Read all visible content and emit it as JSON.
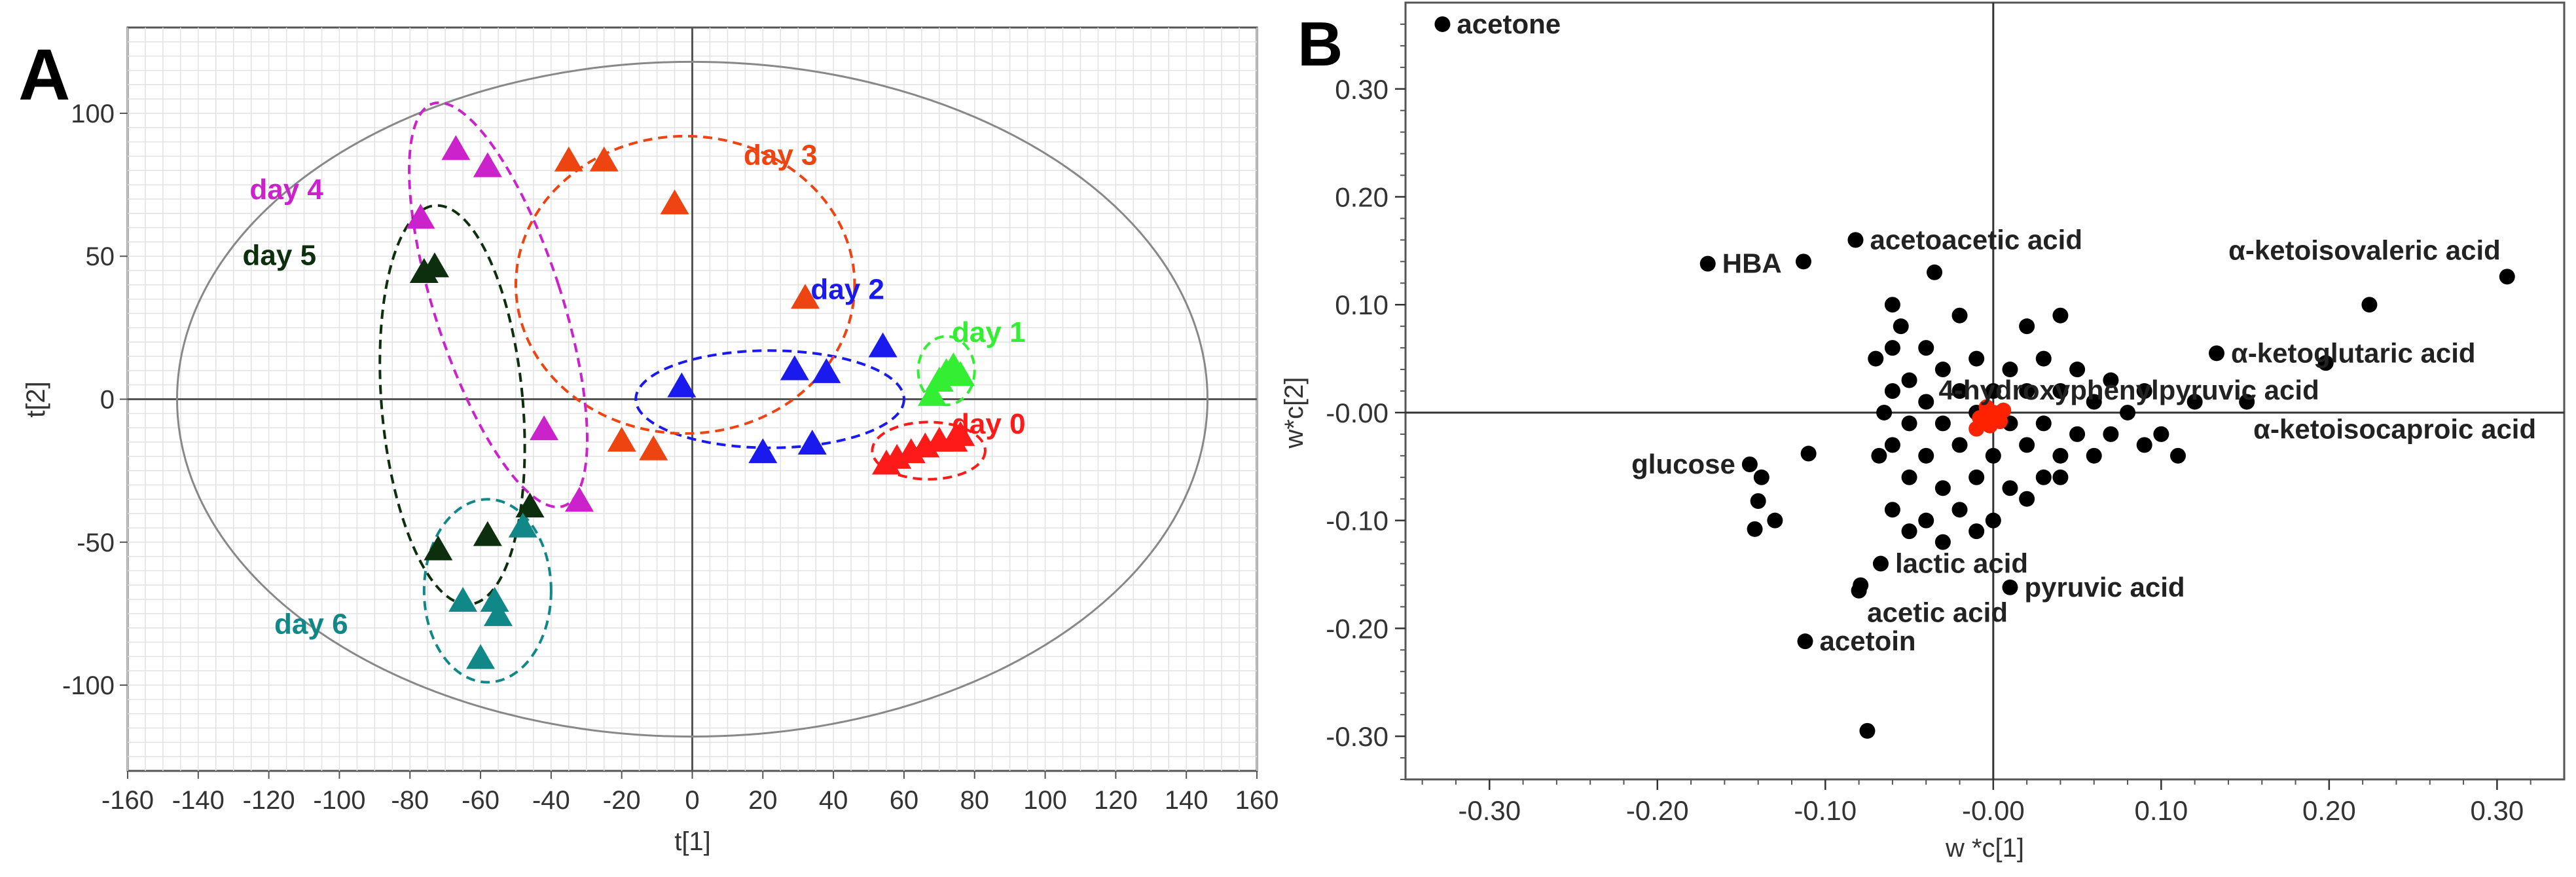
{
  "chart_data": [
    {
      "panel_label": "A",
      "type": "scatter",
      "title": "",
      "xlabel": "t[1]",
      "ylabel": "t[2]",
      "xlim": [
        -160,
        160
      ],
      "ylim": [
        -130,
        130
      ],
      "grid": true,
      "x_ticks": [
        -160,
        -140,
        -120,
        -100,
        -80,
        -60,
        -40,
        -20,
        0,
        20,
        40,
        60,
        80,
        100,
        120,
        140,
        160
      ],
      "y_ticks": [
        -100,
        -50,
        0,
        50,
        100
      ],
      "hotelling_ellipse": {
        "center": [
          0,
          0
        ],
        "radii": [
          146,
          118
        ]
      },
      "series": [
        {
          "name": "day 0",
          "color": "#ff1a1a",
          "label_at": [
            84,
            -12
          ],
          "points": [
            [
              55,
              -22
            ],
            [
              58,
              -20
            ],
            [
              62,
              -18
            ],
            [
              66,
              -16
            ],
            [
              70,
              -14
            ],
            [
              74,
              -14
            ],
            [
              76,
              -12
            ]
          ],
          "cluster": {
            "center": [
              67,
              -18
            ],
            "radii": [
              16,
              10
            ]
          }
        },
        {
          "name": "day 1",
          "color": "#33ee33",
          "label_at": [
            84,
            20
          ],
          "points": [
            [
              68,
              2
            ],
            [
              70,
              7
            ],
            [
              72,
              10
            ],
            [
              74,
              12
            ],
            [
              76,
              9
            ]
          ],
          "cluster": {
            "center": [
              72,
              10
            ],
            "radii": [
              8,
              12
            ]
          }
        },
        {
          "name": "day 2",
          "color": "#1a1aee",
          "label_at": [
            44,
            35
          ],
          "points": [
            [
              -3,
              5
            ],
            [
              20,
              -18
            ],
            [
              29,
              11
            ],
            [
              34,
              -15
            ],
            [
              38,
              10
            ],
            [
              54,
              19
            ]
          ],
          "cluster": {
            "center": [
              22,
              0
            ],
            "radii": [
              38,
              17
            ]
          }
        },
        {
          "name": "day 3",
          "color": "#ee4411",
          "label_at": [
            25,
            82
          ],
          "points": [
            [
              -35,
              84
            ],
            [
              -25,
              84
            ],
            [
              -5,
              69
            ],
            [
              32,
              36
            ],
            [
              -20,
              -14
            ],
            [
              -11,
              -17
            ]
          ],
          "cluster": {
            "center": [
              -2,
              40
            ],
            "radii": [
              48,
              52
            ]
          }
        },
        {
          "name": "day 4",
          "color": "#cc22cc",
          "label_at": [
            -115,
            70
          ],
          "points": [
            [
              -67,
              88
            ],
            [
              -58,
              82
            ],
            [
              -77,
              64
            ],
            [
              -42,
              -10
            ],
            [
              -32,
              -35
            ]
          ],
          "cluster": {
            "center": [
              -55,
              33
            ],
            "radii": [
              18,
              74
            ],
            "rotation": -18
          }
        },
        {
          "name": "day 5",
          "color": "#0d2f0d",
          "label_at": [
            -117,
            47
          ],
          "points": [
            [
              -76,
              45
            ],
            [
              -73,
              47
            ],
            [
              -72,
              -52
            ],
            [
              -58,
              -47
            ],
            [
              -46,
              -37
            ]
          ],
          "cluster": {
            "center": [
              -68,
              -2
            ],
            "radii": [
              20,
              70
            ],
            "rotation": -5
          }
        },
        {
          "name": "day 6",
          "color": "#118888",
          "label_at": [
            -108,
            -82
          ],
          "points": [
            [
              -65,
              -70
            ],
            [
              -56,
              -70
            ],
            [
              -55,
              -75
            ],
            [
              -48,
              -44
            ],
            [
              -60,
              -90
            ]
          ],
          "cluster": {
            "center": [
              -58,
              -67
            ],
            "radii": [
              18,
              32
            ]
          }
        }
      ]
    },
    {
      "panel_label": "B",
      "type": "scatter",
      "title": "",
      "xlabel": "w *c[1]",
      "ylabel": "w*c[2]",
      "xlim": [
        -0.35,
        0.34
      ],
      "ylim": [
        -0.34,
        0.38
      ],
      "grid": false,
      "x_ticks": [
        -0.3,
        -0.2,
        -0.1,
        -0.0,
        0.1,
        0.2,
        0.3
      ],
      "x_tick_labels": [
        "-0.30",
        "-0.20",
        "-0.10",
        "-0.00",
        "0.10",
        "0.20",
        "0.30"
      ],
      "y_ticks": [
        0.3,
        0.2,
        0.1,
        0.0,
        -0.1,
        -0.2,
        -0.3
      ],
      "y_tick_labels": [
        "0.30",
        "0.20",
        "0.10",
        "-0.00",
        "-0.10",
        "-0.20",
        "-0.30"
      ],
      "annotations": [
        {
          "text": "acetone",
          "x": -0.328,
          "y": 0.36,
          "side": "right"
        },
        {
          "text": "acetoacetic acid",
          "x": -0.082,
          "y": 0.16,
          "side": "right"
        },
        {
          "text": "HBA",
          "x": -0.17,
          "y": 0.138,
          "side": "right"
        },
        {
          "text": "α-ketoisovaleric acid",
          "x": 0.306,
          "y": 0.126,
          "side": "above-left"
        },
        {
          "text": "α-ketoglutaric acid",
          "x": 0.133,
          "y": 0.055,
          "side": "right"
        },
        {
          "text": "4-hydroxyphenylpyruvic acid",
          "x": 0.198,
          "y": 0.046,
          "side": "below-left"
        },
        {
          "text": "α-ketoisocaproic acid",
          "x": 0.151,
          "y": 0.01,
          "side": "below-right"
        },
        {
          "text": "glucose",
          "x": -0.145,
          "y": -0.048,
          "side": "left"
        },
        {
          "text": "lactic acid",
          "x": -0.067,
          "y": -0.14,
          "side": "right"
        },
        {
          "text": "acetic acid",
          "x": -0.079,
          "y": -0.16,
          "side": "below-right"
        },
        {
          "text": "pyruvic acid",
          "x": 0.01,
          "y": -0.162,
          "side": "right"
        },
        {
          "text": "acetoin",
          "x": -0.112,
          "y": -0.212,
          "side": "right"
        }
      ],
      "labeled_points": [
        [
          -0.328,
          0.36
        ],
        [
          -0.082,
          0.16
        ],
        [
          -0.17,
          0.138
        ],
        [
          -0.113,
          0.14
        ],
        [
          0.306,
          0.126
        ],
        [
          0.224,
          0.1
        ],
        [
          0.133,
          0.055
        ],
        [
          0.198,
          0.046
        ],
        [
          0.151,
          0.01
        ],
        [
          -0.145,
          -0.048
        ],
        [
          -0.067,
          -0.14
        ],
        [
          -0.079,
          -0.16
        ],
        [
          0.01,
          -0.162
        ],
        [
          -0.112,
          -0.212
        ],
        [
          -0.075,
          -0.295
        ],
        [
          -0.08,
          -0.165
        ]
      ],
      "cluster_points": [
        [
          -0.14,
          -0.082
        ],
        [
          -0.142,
          -0.108
        ],
        [
          -0.13,
          -0.1
        ],
        [
          -0.11,
          -0.038
        ],
        [
          -0.138,
          -0.06
        ],
        [
          -0.06,
          0.1
        ],
        [
          -0.055,
          0.08
        ],
        [
          -0.035,
          0.13
        ],
        [
          -0.06,
          0.06
        ],
        [
          -0.04,
          0.06
        ],
        [
          -0.02,
          0.09
        ],
        [
          0.02,
          0.08
        ],
        [
          0.04,
          0.09
        ],
        [
          -0.05,
          0.03
        ],
        [
          -0.03,
          0.04
        ],
        [
          -0.01,
          0.05
        ],
        [
          0.01,
          0.04
        ],
        [
          0.03,
          0.05
        ],
        [
          0.05,
          0.04
        ],
        [
          0.07,
          0.03
        ],
        [
          0.09,
          0.02
        ],
        [
          -0.06,
          0.02
        ],
        [
          -0.04,
          0.01
        ],
        [
          -0.02,
          0.02
        ],
        [
          0.0,
          0.02
        ],
        [
          0.02,
          0.02
        ],
        [
          0.04,
          0.02
        ],
        [
          0.06,
          0.01
        ],
        [
          0.08,
          0.0
        ],
        [
          -0.05,
          -0.01
        ],
        [
          -0.03,
          -0.01
        ],
        [
          -0.01,
          0.0
        ],
        [
          0.01,
          -0.01
        ],
        [
          0.03,
          -0.01
        ],
        [
          0.05,
          -0.02
        ],
        [
          0.07,
          -0.02
        ],
        [
          0.09,
          -0.03
        ],
        [
          -0.06,
          -0.03
        ],
        [
          -0.04,
          -0.04
        ],
        [
          -0.02,
          -0.03
        ],
        [
          0.0,
          -0.04
        ],
        [
          0.02,
          -0.03
        ],
        [
          0.04,
          -0.04
        ],
        [
          0.06,
          -0.04
        ],
        [
          0.1,
          -0.02
        ],
        [
          -0.05,
          -0.06
        ],
        [
          -0.03,
          -0.07
        ],
        [
          -0.01,
          -0.06
        ],
        [
          0.01,
          -0.07
        ],
        [
          0.03,
          -0.06
        ],
        [
          0.11,
          -0.04
        ],
        [
          0.12,
          0.01
        ],
        [
          -0.06,
          -0.09
        ],
        [
          -0.04,
          -0.1
        ],
        [
          -0.02,
          -0.09
        ],
        [
          0.0,
          -0.1
        ],
        [
          0.02,
          -0.08
        ],
        [
          0.04,
          -0.06
        ],
        [
          -0.07,
          0.05
        ],
        [
          -0.065,
          0.0
        ],
        [
          -0.068,
          -0.04
        ],
        [
          -0.05,
          -0.11
        ],
        [
          -0.03,
          -0.12
        ],
        [
          -0.01,
          -0.11
        ]
      ],
      "highlighted_points_color": "#ff2200",
      "highlighted_points": [
        [
          -0.008,
          -0.005
        ],
        [
          -0.004,
          0.005
        ],
        [
          0.0,
          0.0
        ],
        [
          0.004,
          -0.008
        ],
        [
          -0.01,
          -0.015
        ],
        [
          0.006,
          0.002
        ],
        [
          -0.002,
          -0.012
        ]
      ]
    }
  ]
}
